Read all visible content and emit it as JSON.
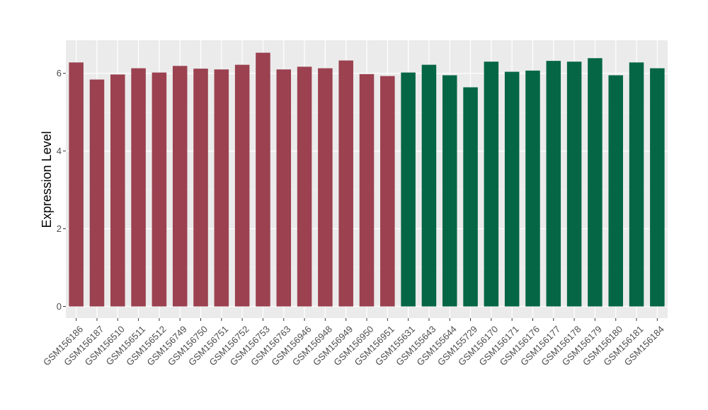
{
  "chart_data": {
    "type": "bar",
    "title": "",
    "xlabel": "",
    "ylabel": "Expression Level",
    "ylim": [
      -0.3,
      6.85
    ],
    "yticks": [
      0,
      2,
      4,
      6
    ],
    "grid": true,
    "legend": "none",
    "categories": [
      "GSM156186",
      "GSM156187",
      "GSM156510",
      "GSM156511",
      "GSM156512",
      "GSM156749",
      "GSM156750",
      "GSM156751",
      "GSM156752",
      "GSM156753",
      "GSM156763",
      "GSM156946",
      "GSM156948",
      "GSM156949",
      "GSM156950",
      "GSM156951",
      "GSM155631",
      "GSM155643",
      "GSM155644",
      "GSM155729",
      "GSM156170",
      "GSM156171",
      "GSM156176",
      "GSM156177",
      "GSM156178",
      "GSM156179",
      "GSM156180",
      "GSM156181",
      "GSM156184"
    ],
    "values": [
      6.28,
      5.84,
      5.97,
      6.13,
      6.02,
      6.19,
      6.12,
      6.1,
      6.22,
      6.53,
      6.1,
      6.17,
      6.13,
      6.33,
      5.98,
      5.93,
      6.02,
      6.22,
      5.95,
      5.64,
      6.3,
      6.04,
      6.07,
      6.32,
      6.3,
      6.39,
      5.95,
      6.28,
      6.13
    ],
    "groups": [
      "a",
      "a",
      "a",
      "a",
      "a",
      "a",
      "a",
      "a",
      "a",
      "a",
      "a",
      "a",
      "a",
      "a",
      "a",
      "a",
      "b",
      "b",
      "b",
      "b",
      "b",
      "b",
      "b",
      "b",
      "b",
      "b",
      "b",
      "b",
      "b"
    ],
    "colors": {
      "a": "#9b4150",
      "b": "#046645",
      "panel": "#ebebeb",
      "grid_major": "#ffffff",
      "grid_minor": "#f5f5f5"
    }
  }
}
